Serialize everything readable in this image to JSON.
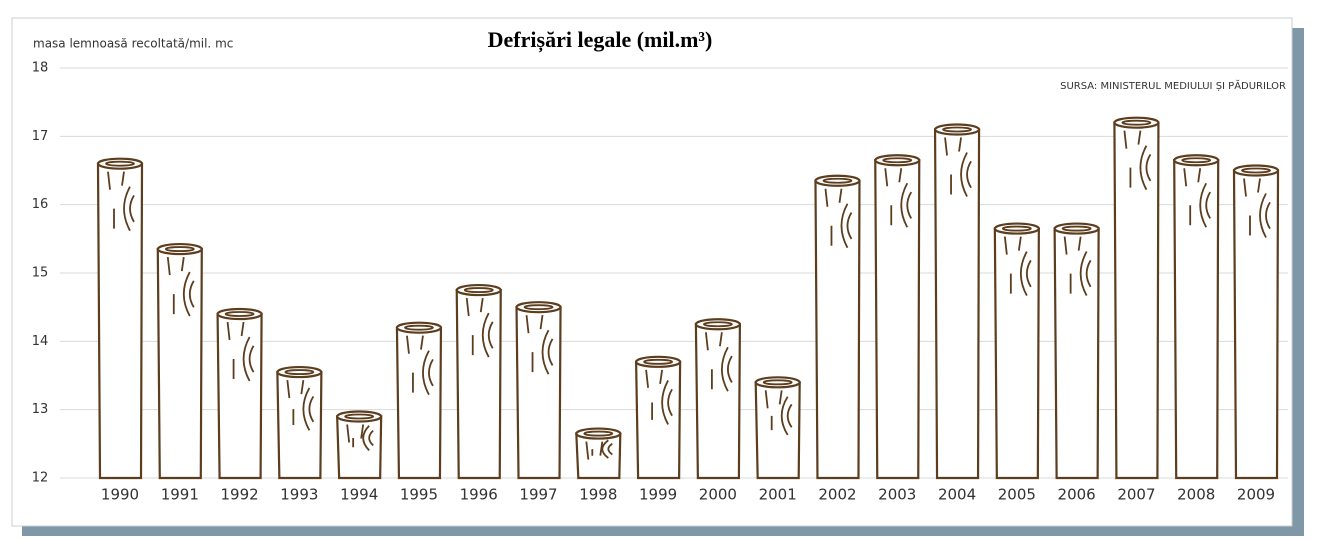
{
  "chart_data": {
    "type": "bar",
    "title": "Defrișări legale (mil.m³)",
    "y_label": "masa lemnoasă recoltată/mil. mc",
    "source": "SURSA: MINISTERUL MEDIULUI ȘI PĂDURILOR",
    "categories": [
      "1990",
      "1991",
      "1992",
      "1993",
      "1994",
      "1995",
      "1996",
      "1997",
      "1998",
      "1999",
      "2000",
      "2001",
      "2002",
      "2003",
      "2004",
      "2005",
      "2006",
      "2007",
      "2008",
      "2009"
    ],
    "values": [
      16.6,
      15.35,
      14.4,
      13.55,
      12.9,
      14.2,
      14.75,
      14.5,
      12.65,
      13.7,
      14.25,
      13.4,
      16.35,
      16.65,
      17.1,
      15.65,
      15.65,
      17.2,
      16.65,
      16.5
    ],
    "color": "#5c3d1e",
    "ylim": [
      12,
      18
    ],
    "yticks": [
      12,
      13,
      14,
      15,
      16,
      17,
      18
    ],
    "grid": true
  }
}
